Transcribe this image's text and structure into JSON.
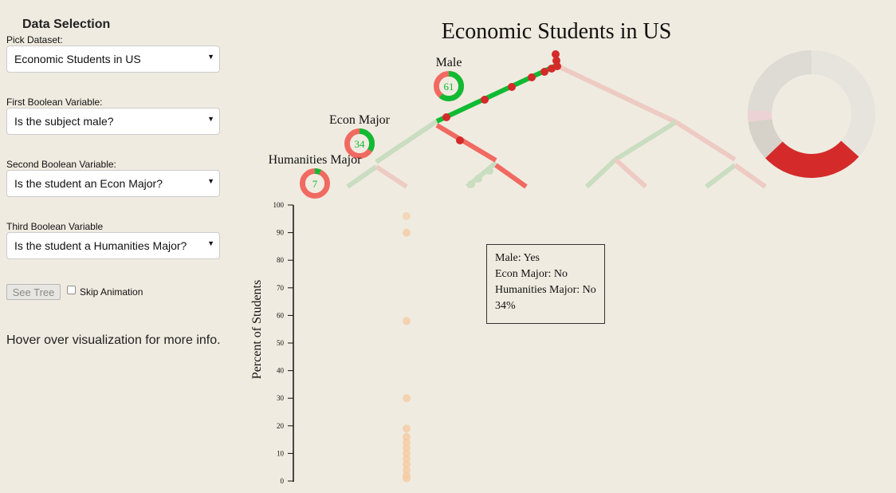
{
  "sidebar": {
    "title": "Data Selection",
    "dataset_label": "Pick Dataset:",
    "dataset_value": "Economic Students in US",
    "var1_label": "First Boolean Variable:",
    "var1_value": "Is the subject male?",
    "var2_label": "Second Boolean Variable:",
    "var2_value": "Is the student an Econ Major?",
    "var3_label": "Third Boolean Variable",
    "var3_value": "Is the student a Humanities Major?",
    "see_tree_label": "See Tree",
    "skip_animation_label": "Skip Animation",
    "skip_animation_checked": false,
    "hover_hint": "Hover over visualization for more info."
  },
  "viz": {
    "title": "Economic Students in US",
    "y_axis_label": "Percent of Students",
    "y_ticks": [
      "0",
      "10",
      "20",
      "30",
      "40",
      "50",
      "60",
      "70",
      "80",
      "90",
      "100"
    ],
    "node_labels": {
      "male": "Male",
      "econ": "Econ Major",
      "humanities": "Humanities Major"
    },
    "donut_values": {
      "male": "61",
      "econ": "34",
      "humanities": "7"
    },
    "colors": {
      "yes": "#10bb33",
      "no": "#f06a62",
      "path_red": "#d42a2a",
      "faded_green": "#c9ddc0",
      "faded_red": "#edcbc3",
      "dot_orange": "#f5c9a0"
    }
  },
  "tooltip": {
    "line1": "Male: Yes",
    "line2": "Econ Major: No",
    "line3": "Humanities Major: No",
    "line4": "34%"
  },
  "chart_data": {
    "type": "scatter",
    "ylabel": "Percent of Students",
    "ylim": [
      0,
      100
    ],
    "tree": [
      {
        "path": "Male: Yes",
        "percent": 61
      },
      {
        "path": "Male: Yes, Econ Major: Yes",
        "percent": 34
      },
      {
        "path": "Male: Yes, Econ Major: Yes, Humanities Major: Yes",
        "percent": 7
      }
    ],
    "highlighted": {
      "Male": "Yes",
      "Econ Major": "No",
      "Humanities Major": "No",
      "percent": 34
    },
    "scatter_points_percent": [
      96,
      90,
      58,
      30,
      19,
      16,
      14,
      12,
      10,
      8,
      6,
      4,
      2,
      1
    ]
  }
}
